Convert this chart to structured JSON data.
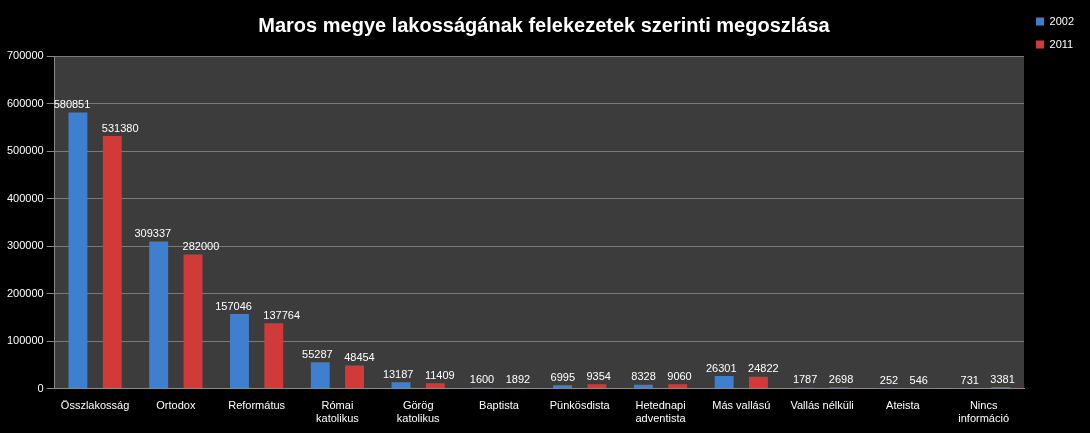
{
  "chart_data": {
    "type": "bar",
    "title": "Maros megye lakosságának felekezetek szerinti megoszlása",
    "categories": [
      "Összlakosság",
      "Ortodox",
      "Református",
      "Római katolikus",
      "Görög katolikus",
      "Baptista",
      "Pünkösdista",
      "Hetednapi adventista",
      "Más vallású",
      "Vallás nélküli",
      "Ateista",
      "Nincs információ"
    ],
    "series": [
      {
        "name": "2002",
        "color": "#3f7fd0",
        "values": [
          580851,
          309337,
          157046,
          55287,
          13187,
          1600,
          6995,
          8328,
          26301,
          1787,
          252,
          731
        ]
      },
      {
        "name": "2011",
        "color": "#d23a3a",
        "values": [
          531380,
          282000,
          137764,
          48454,
          11409,
          1892,
          9354,
          9060,
          24822,
          2698,
          546,
          3381
        ]
      }
    ],
    "ylim": [
      0,
      700000
    ],
    "yticks": [
      0,
      100000,
      200000,
      300000,
      400000,
      500000,
      600000,
      700000
    ],
    "grid": "y",
    "legend": "right",
    "data_labels": true
  }
}
